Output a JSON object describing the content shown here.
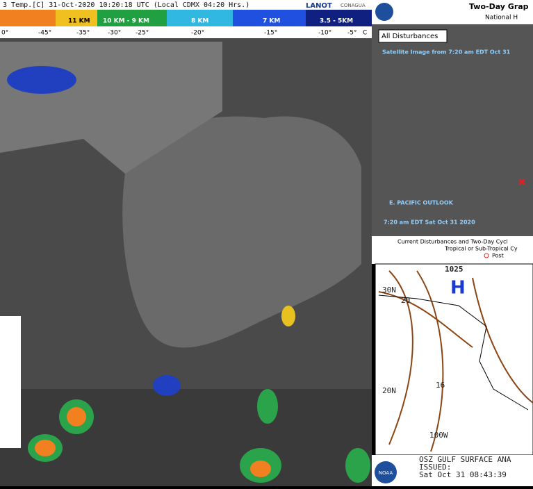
{
  "left_panel": {
    "header": "3 Temp.[C] 31-Oct-2020 10:20:18 UTC (Local CDMX 04:20 Hrs.)",
    "logos": [
      "LANOT",
      "CONAGUA"
    ],
    "height_scale": [
      "11 KM",
      "10 KM - 9 KM",
      "8 KM",
      "7 KM",
      "3.5 - 5KM"
    ],
    "temperature_scale": [
      "0°",
      "-45°",
      "-35°",
      "-30°",
      "-25°",
      "-20°",
      "-15°",
      "-10°",
      "-5°",
      "C"
    ]
  },
  "right_top": {
    "title": "Two-Day Grap",
    "subtitle": "National H",
    "tab": "All Disturbances",
    "image_note": "Satellite Image from 7:20 am EDT Oct 31",
    "region": "E. PACIFIC OUTLOOK",
    "time": "7:20 am EDT Sat Oct 31 2020",
    "caption_1": "Current Disturbances and Two-Day Cycl",
    "caption_2": "Tropical or Sub-Tropical Cy",
    "legend": "Post"
  },
  "right_bottom": {
    "labels": [
      "1025",
      "H",
      "30N",
      "20",
      "16",
      "20N",
      "100W"
    ],
    "footer_1": "OSZ GULF SURFACE ANA",
    "footer_2": "ISSUED:",
    "footer_3": "Sat Oct 31 08:43:39",
    "logo": "NOAA"
  }
}
